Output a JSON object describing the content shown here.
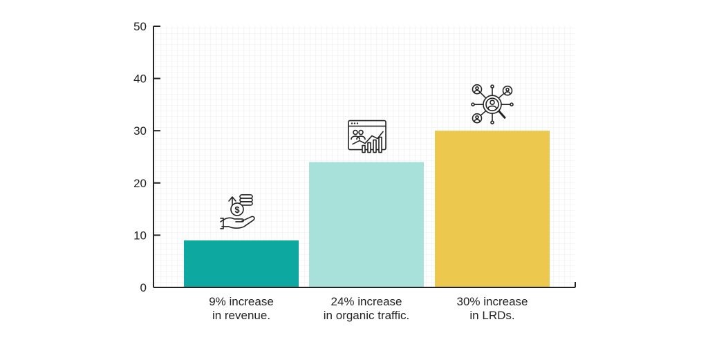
{
  "chart_data": {
    "type": "bar",
    "title": "",
    "xlabel": "",
    "ylabel": "",
    "ylim": [
      0,
      50
    ],
    "yticks": [
      0,
      10,
      20,
      30,
      40,
      50
    ],
    "grid": true,
    "categories": [
      {
        "line1": "9% increase",
        "line2": "in revenue.",
        "icon": "hand-money-icon"
      },
      {
        "line1": "24% increase",
        "line2": "in organic traffic.",
        "icon": "analytics-window-icon"
      },
      {
        "line1": "30% increase",
        "line2": "in LRDs.",
        "icon": "network-search-icon"
      }
    ],
    "values": [
      9,
      24,
      30
    ],
    "colors": [
      "#0DA9A0",
      "#A8E1DA",
      "#EDC84F"
    ]
  }
}
